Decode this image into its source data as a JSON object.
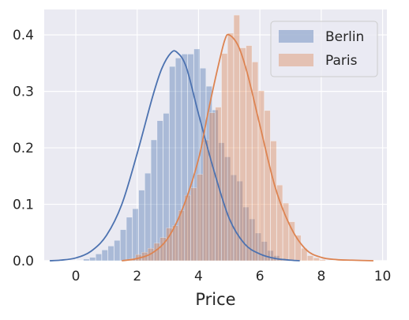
{
  "chart_data": {
    "type": "histogram",
    "title": "",
    "xlabel": "Price",
    "ylabel": "",
    "xlim": [
      -1.03,
      10.14
    ],
    "ylim": [
      0,
      0.445
    ],
    "xticks": [
      "0",
      "2",
      "4",
      "6",
      "8",
      "10"
    ],
    "yticks": [
      "0.0",
      "0.1",
      "0.2",
      "0.3",
      "0.4"
    ],
    "grid": true,
    "legend_position": "top-right",
    "series": [
      {
        "name": "Berlin",
        "color": "#4c72b0",
        "bins": [
          [
            -0.15,
            0.0
          ],
          [
            0.05,
            0.0
          ],
          [
            0.25,
            0.003
          ],
          [
            0.45,
            0.006
          ],
          [
            0.65,
            0.012
          ],
          [
            0.85,
            0.019
          ],
          [
            1.05,
            0.026
          ],
          [
            1.25,
            0.036
          ],
          [
            1.45,
            0.055
          ],
          [
            1.65,
            0.077
          ],
          [
            1.85,
            0.092
          ],
          [
            2.05,
            0.125
          ],
          [
            2.25,
            0.155
          ],
          [
            2.45,
            0.214
          ],
          [
            2.65,
            0.248
          ],
          [
            2.85,
            0.261
          ],
          [
            3.05,
            0.344
          ],
          [
            3.25,
            0.359
          ],
          [
            3.45,
            0.366
          ],
          [
            3.65,
            0.366
          ],
          [
            3.85,
            0.375
          ],
          [
            4.05,
            0.341
          ],
          [
            4.25,
            0.309
          ],
          [
            4.45,
            0.267
          ],
          [
            4.65,
            0.209
          ],
          [
            4.85,
            0.184
          ],
          [
            5.05,
            0.152
          ],
          [
            5.25,
            0.141
          ],
          [
            5.45,
            0.095
          ],
          [
            5.65,
            0.074
          ],
          [
            5.85,
            0.049
          ],
          [
            6.05,
            0.034
          ],
          [
            6.25,
            0.018
          ],
          [
            6.45,
            0.009
          ],
          [
            6.65,
            0.004
          ],
          [
            6.85,
            0.002
          ]
        ],
        "bin_width": 0.2,
        "kde": {
          "x": [
            -0.85,
            -0.5,
            0,
            0.5,
            1,
            1.5,
            2,
            2.5,
            2.8,
            3.1,
            3.3,
            3.6,
            4,
            4.5,
            5,
            5.5,
            6,
            6.5,
            7,
            7.3
          ],
          "y": [
            0.0,
            0.001,
            0.005,
            0.017,
            0.045,
            0.1,
            0.19,
            0.29,
            0.34,
            0.368,
            0.369,
            0.343,
            0.26,
            0.16,
            0.075,
            0.03,
            0.012,
            0.004,
            0.001,
            0.0
          ]
        }
      },
      {
        "name": "Paris",
        "color": "#dd8452",
        "bins": [
          [
            1.55,
            0.0
          ],
          [
            1.75,
            0.004
          ],
          [
            1.95,
            0.011
          ],
          [
            2.15,
            0.015
          ],
          [
            2.35,
            0.022
          ],
          [
            2.55,
            0.031
          ],
          [
            2.75,
            0.041
          ],
          [
            2.95,
            0.058
          ],
          [
            3.15,
            0.062
          ],
          [
            3.35,
            0.089
          ],
          [
            3.55,
            0.116
          ],
          [
            3.75,
            0.129
          ],
          [
            3.95,
            0.153
          ],
          [
            4.15,
            0.214
          ],
          [
            4.35,
            0.262
          ],
          [
            4.55,
            0.272
          ],
          [
            4.75,
            0.367
          ],
          [
            4.95,
            0.403
          ],
          [
            5.15,
            0.435
          ],
          [
            5.35,
            0.377
          ],
          [
            5.55,
            0.381
          ],
          [
            5.75,
            0.352
          ],
          [
            5.95,
            0.301
          ],
          [
            6.15,
            0.266
          ],
          [
            6.35,
            0.212
          ],
          [
            6.55,
            0.134
          ],
          [
            6.75,
            0.102
          ],
          [
            6.95,
            0.069
          ],
          [
            7.15,
            0.045
          ],
          [
            7.35,
            0.022
          ],
          [
            7.55,
            0.009
          ],
          [
            7.75,
            0.005
          ],
          [
            7.95,
            0.002
          ]
        ],
        "bin_width": 0.2,
        "kde": {
          "x": [
            1.5,
            2,
            2.5,
            3,
            3.5,
            4,
            4.3,
            4.6,
            4.85,
            5.0,
            5.3,
            5.6,
            6.0,
            6.5,
            7,
            7.5,
            8,
            8.5,
            9,
            9.7
          ],
          "y": [
            0.0,
            0.004,
            0.014,
            0.04,
            0.095,
            0.18,
            0.26,
            0.335,
            0.39,
            0.4,
            0.38,
            0.33,
            0.24,
            0.13,
            0.06,
            0.02,
            0.006,
            0.002,
            0.001,
            0.0
          ]
        }
      }
    ]
  }
}
